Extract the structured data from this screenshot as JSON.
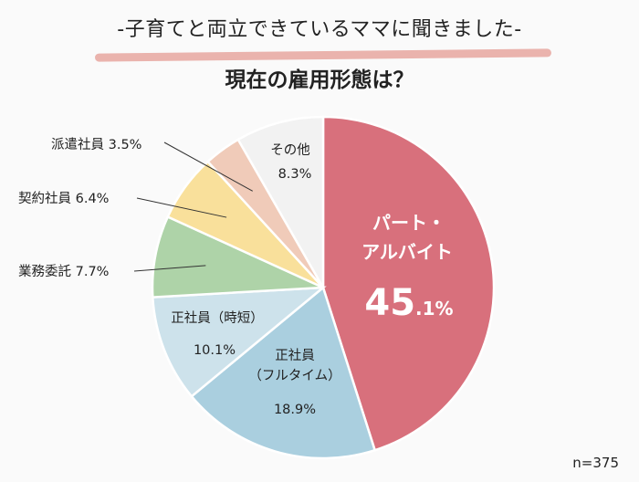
{
  "header": {
    "subtitle": "-子育てと両立できているママに聞きました-",
    "title": "現在の雇用形態は？"
  },
  "sample_size": "n=375",
  "chart_data": {
    "type": "pie",
    "title": "現在の雇用形態は？",
    "start": "top, clockwise",
    "slices": [
      {
        "label": "パート・アルバイト",
        "label_lines": [
          "パート・",
          "アルバイト"
        ],
        "value": 45.1,
        "value_text": "45",
        "value_suffix": ".1%",
        "color": "#d8707c"
      },
      {
        "label": "正社員（フルタイム）",
        "label_lines": [
          "正社員",
          "（フルタイム）"
        ],
        "value": 18.9,
        "value_text": "18.9%",
        "color": "#aacfdf"
      },
      {
        "label": "正社員（時短）",
        "label_lines": [
          "正社員（時短）"
        ],
        "value": 10.1,
        "value_text": "10.1%",
        "color": "#cde2eb"
      },
      {
        "label": "業務委託",
        "label_lines": [
          "業務委託 7.7%"
        ],
        "value": 7.7,
        "value_text": "7.7%",
        "color": "#aed3a8"
      },
      {
        "label": "契約社員",
        "label_lines": [
          "契約社員 6.4%"
        ],
        "value": 6.4,
        "value_text": "6.4%",
        "color": "#f9e09b"
      },
      {
        "label": "派遣社員",
        "label_lines": [
          "派遣社員 3.5%"
        ],
        "value": 3.5,
        "value_text": "3.5%",
        "color": "#f0cbb9"
      },
      {
        "label": "その他",
        "label_lines": [
          "その他"
        ],
        "value": 8.3,
        "value_text": "8.3%",
        "color": "#f2f2f2"
      }
    ]
  }
}
